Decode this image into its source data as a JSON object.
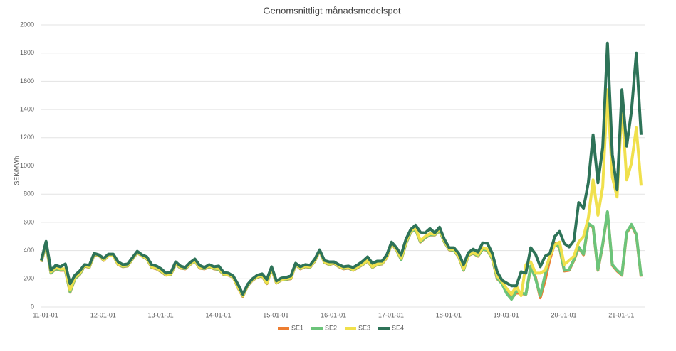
{
  "chart_data": {
    "type": "line",
    "title": "Genomsnittligt månadsmedelspot",
    "y_label": "SEK/MWh",
    "categories": [
      "11-01-01",
      null,
      null,
      null,
      null,
      null,
      null,
      null,
      null,
      null,
      null,
      null,
      "12-01-01",
      null,
      null,
      null,
      null,
      null,
      null,
      null,
      null,
      null,
      null,
      null,
      "13-01-01",
      null,
      null,
      null,
      null,
      null,
      null,
      null,
      null,
      null,
      null,
      null,
      "14-01-01",
      null,
      null,
      null,
      null,
      null,
      null,
      null,
      null,
      null,
      null,
      null,
      "15-01-01",
      null,
      null,
      null,
      null,
      null,
      null,
      null,
      null,
      null,
      null,
      null,
      "16-01-01",
      null,
      null,
      null,
      null,
      null,
      null,
      null,
      null,
      null,
      null,
      null,
      "17-01-01",
      null,
      null,
      null,
      null,
      null,
      null,
      null,
      null,
      null,
      null,
      null,
      "18-01-01",
      null,
      null,
      null,
      null,
      null,
      null,
      null,
      null,
      null,
      null,
      null,
      "19-01-01",
      null,
      null,
      null,
      null,
      null,
      null,
      null,
      null,
      null,
      null,
      null,
      "20-01-01",
      null,
      null,
      null,
      null,
      null,
      null,
      null,
      null,
      null,
      null,
      null,
      "21-01-01",
      null,
      null,
      null,
      null,
      null
    ],
    "series": [
      {
        "name": "SE1",
        "color": "#ed7d31",
        "values": [
          320,
          440,
          240,
          270,
          260,
          260,
          105,
          200,
          230,
          290,
          280,
          370,
          365,
          330,
          365,
          365,
          300,
          285,
          290,
          340,
          385,
          360,
          340,
          280,
          270,
          250,
          225,
          230,
          305,
          275,
          270,
          300,
          325,
          275,
          270,
          285,
          270,
          265,
          230,
          225,
          210,
          135,
          75,
          150,
          190,
          210,
          220,
          165,
          270,
          170,
          190,
          195,
          200,
          300,
          270,
          285,
          280,
          325,
          400,
          315,
          300,
          310,
          285,
          270,
          275,
          260,
          280,
          300,
          325,
          280,
          300,
          305,
          350,
          450,
          405,
          335,
          450,
          530,
          550,
          460,
          490,
          510,
          510,
          540,
          460,
          405,
          400,
          355,
          260,
          365,
          380,
          360,
          410,
          400,
          340,
          200,
          170,
          100,
          60,
          100,
          95,
          90,
          280,
          210,
          65,
          190,
          340,
          450,
          420,
          255,
          260,
          330,
          420,
          370,
          585,
          565,
          260,
          440,
          670,
          295,
          255,
          225,
          525,
          580,
          510,
          215
        ]
      },
      {
        "name": "SE2",
        "color": "#6cc47a",
        "values": [
          322,
          442,
          242,
          272,
          262,
          262,
          108,
          202,
          232,
          292,
          282,
          372,
          366,
          332,
          366,
          366,
          302,
          287,
          292,
          342,
          386,
          361,
          342,
          282,
          272,
          252,
          227,
          232,
          306,
          277,
          272,
          302,
          326,
          277,
          272,
          287,
          272,
          267,
          232,
          227,
          212,
          138,
          78,
          152,
          192,
          212,
          222,
          168,
          272,
          172,
          192,
          197,
          202,
          302,
          272,
          287,
          282,
          327,
          401,
          317,
          302,
          312,
          287,
          272,
          277,
          262,
          282,
          302,
          327,
          282,
          302,
          307,
          352,
          452,
          407,
          337,
          452,
          532,
          552,
          462,
          492,
          512,
          512,
          542,
          462,
          407,
          402,
          357,
          262,
          367,
          382,
          362,
          412,
          402,
          342,
          205,
          165,
          95,
          55,
          110,
          100,
          90,
          290,
          200,
          80,
          230,
          370,
          445,
          425,
          260,
          265,
          335,
          425,
          375,
          590,
          570,
          265,
          445,
          675,
          300,
          260,
          230,
          530,
          585,
          515,
          220
        ]
      },
      {
        "name": "SE3",
        "color": "#f0e04c",
        "values": [
          325,
          450,
          250,
          280,
          270,
          270,
          120,
          210,
          240,
          295,
          285,
          375,
          367,
          335,
          368,
          368,
          305,
          290,
          295,
          345,
          388,
          363,
          345,
          285,
          275,
          255,
          230,
          235,
          310,
          280,
          275,
          305,
          330,
          280,
          275,
          290,
          275,
          272,
          235,
          230,
          213,
          140,
          80,
          155,
          193,
          215,
          225,
          170,
          275,
          175,
          195,
          200,
          205,
          305,
          275,
          290,
          285,
          330,
          403,
          320,
          305,
          313,
          290,
          275,
          280,
          265,
          285,
          305,
          330,
          285,
          305,
          310,
          355,
          455,
          410,
          345,
          460,
          540,
          560,
          470,
          500,
          520,
          515,
          550,
          468,
          410,
          408,
          362,
          270,
          370,
          385,
          370,
          420,
          410,
          350,
          220,
          180,
          130,
          90,
          150,
          80,
          300,
          320,
          240,
          240,
          260,
          360,
          440,
          460,
          300,
          330,
          360,
          460,
          500,
          630,
          900,
          650,
          850,
          1540,
          920,
          780,
          1420,
          900,
          1020,
          1270,
          860
        ]
      },
      {
        "name": "SE4",
        "color": "#2e7358",
        "values": [
          330,
          465,
          260,
          295,
          285,
          305,
          165,
          225,
          255,
          300,
          295,
          380,
          370,
          345,
          375,
          375,
          320,
          300,
          305,
          350,
          395,
          370,
          355,
          300,
          290,
          270,
          240,
          245,
          320,
          290,
          280,
          315,
          340,
          295,
          280,
          300,
          285,
          290,
          245,
          240,
          220,
          160,
          90,
          160,
          200,
          225,
          235,
          195,
          285,
          185,
          205,
          210,
          220,
          310,
          285,
          300,
          295,
          340,
          405,
          330,
          320,
          320,
          300,
          285,
          290,
          280,
          300,
          325,
          355,
          310,
          325,
          325,
          370,
          460,
          420,
          370,
          480,
          550,
          580,
          530,
          525,
          555,
          525,
          565,
          480,
          420,
          420,
          380,
          300,
          385,
          410,
          390,
          455,
          450,
          380,
          250,
          190,
          170,
          150,
          150,
          250,
          240,
          420,
          375,
          285,
          360,
          380,
          500,
          535,
          450,
          425,
          470,
          740,
          700,
          880,
          1220,
          880,
          1130,
          1870,
          1080,
          830,
          1540,
          1140,
          1390,
          1800,
          1220
        ]
      }
    ],
    "ylim": [
      0,
      2000
    ],
    "yticks": [
      0,
      200,
      400,
      600,
      800,
      1000,
      1200,
      1400,
      1600,
      1800,
      2000
    ],
    "grid": true,
    "legend": "bottom"
  }
}
